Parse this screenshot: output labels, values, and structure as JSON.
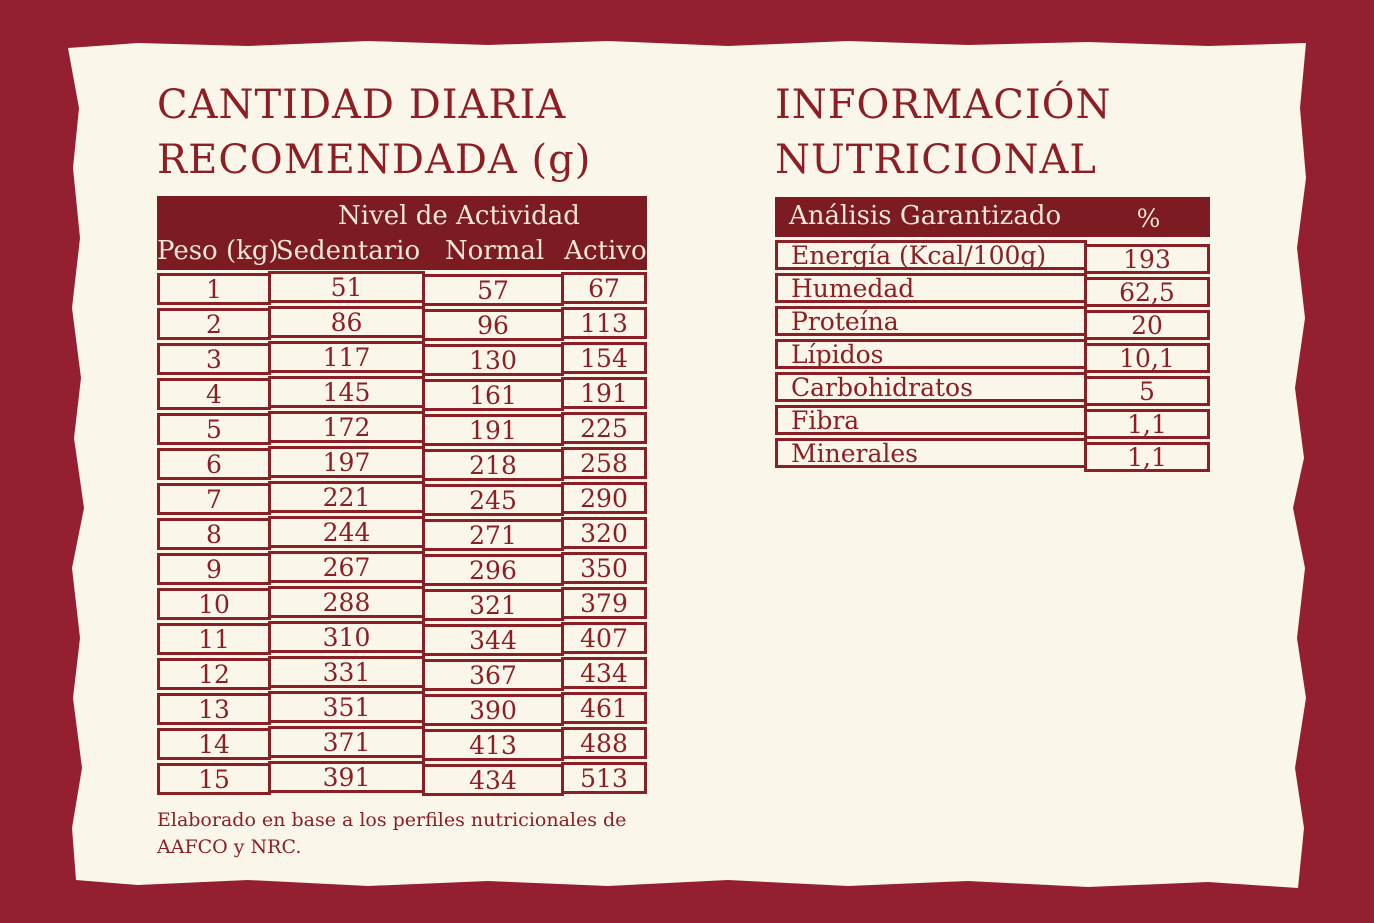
{
  "colors": {
    "background": "#941F30",
    "paper": "#FAF6EA",
    "table_header_bg": "#7C1B22",
    "border": "#8A2026",
    "text": "#8C1E24",
    "header_text": "#F0E7D6"
  },
  "left_section": {
    "title_lines": [
      "CANTIDAD DIARIA",
      "RECOMENDADA (g)"
    ],
    "table": {
      "header_group": "Nivel de Actividad",
      "columns": [
        "Peso (kg)",
        "Sedentario",
        "Normal",
        "Activo"
      ],
      "rows": [
        [
          "1",
          "51",
          "57",
          "67"
        ],
        [
          "2",
          "86",
          "96",
          "113"
        ],
        [
          "3",
          "117",
          "130",
          "154"
        ],
        [
          "4",
          "145",
          "161",
          "191"
        ],
        [
          "5",
          "172",
          "191",
          "225"
        ],
        [
          "6",
          "197",
          "218",
          "258"
        ],
        [
          "7",
          "221",
          "245",
          "290"
        ],
        [
          "8",
          "244",
          "271",
          "320"
        ],
        [
          "9",
          "267",
          "296",
          "350"
        ],
        [
          "10",
          "288",
          "321",
          "379"
        ],
        [
          "11",
          "310",
          "344",
          "407"
        ],
        [
          "12",
          "331",
          "367",
          "434"
        ],
        [
          "13",
          "351",
          "390",
          "461"
        ],
        [
          "14",
          "371",
          "413",
          "488"
        ],
        [
          "15",
          "391",
          "434",
          "513"
        ]
      ]
    },
    "footnote_lines": [
      "Elaborado en base a los perfiles nutricionales de",
      "AAFCO y NRC."
    ]
  },
  "right_section": {
    "title_lines": [
      "INFORMACIÓN",
      "NUTRICIONAL"
    ],
    "table": {
      "header_label": "Análisis Garantizado",
      "header_unit": "%",
      "rows": [
        [
          "Energía (Kcal/100g)",
          "193"
        ],
        [
          "Humedad",
          "62,5"
        ],
        [
          "Proteína",
          "20"
        ],
        [
          "Lípidos",
          "10,1"
        ],
        [
          "Carbohidratos",
          "5"
        ],
        [
          "Fibra",
          "1,1"
        ],
        [
          "Minerales",
          "1,1"
        ]
      ]
    }
  }
}
